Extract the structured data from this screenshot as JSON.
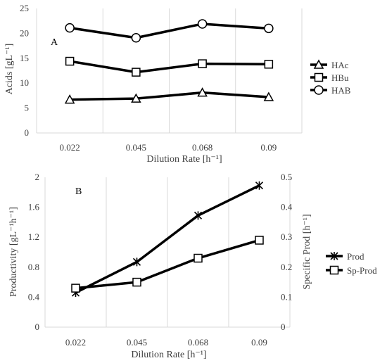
{
  "chart_data": [
    {
      "type": "line",
      "panel_label": "A",
      "categories": [
        "0.022",
        "0.045",
        "0.068",
        "0.09"
      ],
      "xlabel": "Dilution Rate [h⁻¹]",
      "ylabel": "Acids [gL⁻¹]",
      "ylim": [
        0,
        25
      ],
      "yticks": [
        0,
        5,
        10,
        15,
        20,
        25
      ],
      "y_tick_labels": [
        "0",
        "5",
        "10",
        "15",
        "20",
        "25"
      ],
      "grid": "vertical",
      "legend_position": "right",
      "series": [
        {
          "name": "HAc",
          "marker": "triangle",
          "values": [
            6.7,
            6.9,
            8.1,
            7.2
          ]
        },
        {
          "name": "HBu",
          "marker": "square",
          "values": [
            14.4,
            12.2,
            13.9,
            13.8
          ]
        },
        {
          "name": "HAB",
          "marker": "circle",
          "values": [
            21.1,
            19.1,
            21.9,
            21.0
          ]
        }
      ]
    },
    {
      "type": "line",
      "panel_label": "B",
      "categories": [
        "0.022",
        "0.045",
        "0.068",
        "0.09"
      ],
      "xlabel": "Dilution Rate [h⁻¹]",
      "ylabel": "Productivity [gL⁻¹h⁻¹]",
      "y2label": "Specific Prod [h⁻¹]",
      "ylim": [
        0,
        2
      ],
      "yticks": [
        0,
        0.4,
        0.8,
        1.2,
        1.6,
        2
      ],
      "y_tick_labels": [
        "0",
        "0.4",
        "0.8",
        "1.2",
        "1.6",
        "2"
      ],
      "y2lim": [
        0,
        0.5
      ],
      "y2ticks": [
        0,
        0.1,
        0.2,
        0.3,
        0.4,
        0.5
      ],
      "y2_tick_labels": [
        "0",
        "0.1",
        "0.2",
        "0.3",
        "0.4",
        "0.5"
      ],
      "grid": "vertical",
      "legend_position": "right",
      "series": [
        {
          "name": "Prod",
          "marker": "asterisk",
          "axis": "left",
          "values": [
            0.46,
            0.87,
            1.49,
            1.89
          ]
        },
        {
          "name": "Sp-Prod",
          "marker": "square",
          "axis": "right",
          "values": [
            0.13,
            0.15,
            0.23,
            0.29
          ]
        }
      ]
    }
  ],
  "colors": {
    "series_line": "#000000",
    "axis_text": "#404040",
    "gridline": "#d9d9d9",
    "marker_fill": "#ffffff"
  }
}
